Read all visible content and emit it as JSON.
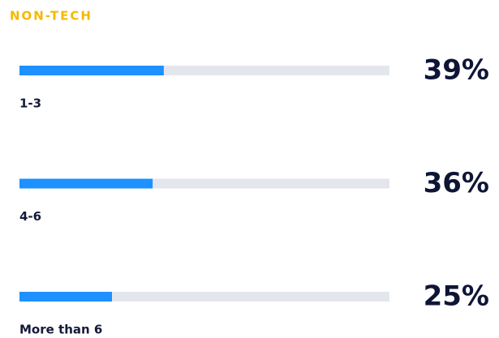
{
  "chart_data": {
    "type": "bar",
    "orientation": "horizontal",
    "title": "NON-TECH",
    "title_color": "#f5b800",
    "categories": [
      "1-3",
      "4-6",
      "More than 6"
    ],
    "values": [
      39,
      36,
      25
    ],
    "value_labels": [
      "39%",
      "36%",
      "25%"
    ],
    "color": "#1e90ff",
    "track_color": "#e4e6ed",
    "xlim": [
      0,
      100
    ]
  }
}
